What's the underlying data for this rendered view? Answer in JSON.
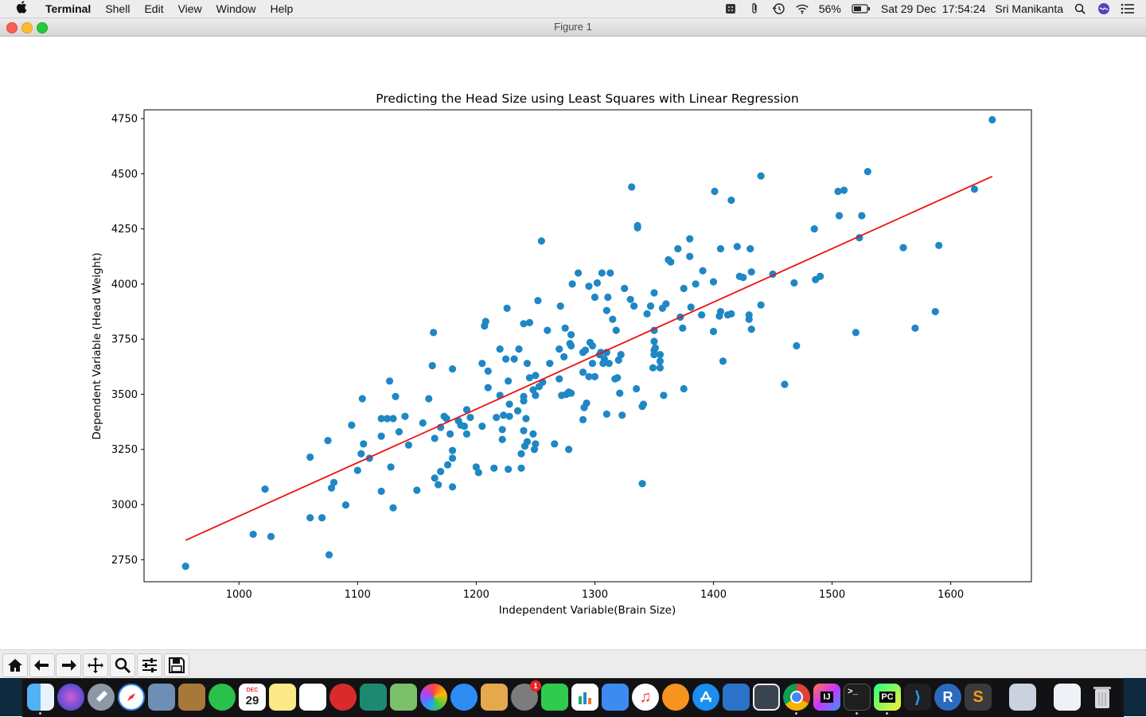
{
  "menubar": {
    "apple": "",
    "app_name": "Terminal",
    "items": [
      "Shell",
      "Edit",
      "View",
      "Window",
      "Help"
    ],
    "battery": "56%",
    "datetime": "Sat 29 Dec  17:54:24",
    "user": "Sri Manikanta",
    "status_icons": [
      "grid-icon",
      "paperclip-icon",
      "time-machine-icon",
      "wifi-icon",
      "battery-icon",
      "search-icon",
      "siri-icon",
      "list-icon"
    ]
  },
  "window": {
    "title": "Figure 1"
  },
  "toolbar": {
    "buttons": [
      "home-icon",
      "back-arrow-icon",
      "forward-arrow-icon",
      "pan-icon",
      "zoom-icon",
      "configure-subplots-icon",
      "save-icon"
    ]
  },
  "dock": {
    "apps": [
      "Finder",
      "Siri",
      "Launchpad",
      "Safari",
      "Preview",
      "Notefile",
      "Evernote",
      "Calendar",
      "Notes",
      "Reminders",
      "Clipper",
      "Shield",
      "Maps",
      "Photos",
      "Messages",
      "Texts",
      "System Preferences",
      "FaceTime",
      "Numbers",
      "Keynote",
      "Music",
      "Books",
      "App Store",
      "Xcode",
      "Remote",
      "Chrome",
      "IntelliJ",
      "Terminal",
      "PyCharm",
      "VS Code",
      "R",
      "Sublime Text",
      "Preview2",
      "Downloads",
      "Trash"
    ],
    "calendar_day": "29",
    "calendar_month": "DEC",
    "sysprefs_badge": "1"
  },
  "chart_data": {
    "type": "scatter",
    "title": "Predicting the Head Size using Least Squares with Linear Regression",
    "xlabel": "Independent Variable(Brain Size)",
    "ylabel": "Dependent Variable (Head Weight)",
    "xlim": [
      920,
      1668
    ],
    "ylim": [
      2650,
      4790
    ],
    "xticks": [
      1000,
      1100,
      1200,
      1300,
      1400,
      1500,
      1600
    ],
    "yticks": [
      2750,
      3000,
      3250,
      3500,
      3750,
      4000,
      4250,
      4500,
      4750
    ],
    "grid": false,
    "scatter_color": "#1f87c4",
    "line_color": "#ee1111",
    "regression_line": {
      "x": [
        955,
        1635
      ],
      "y": [
        2838,
        4488
      ]
    },
    "points": [
      [
        955,
        2720
      ],
      [
        1012,
        2865
      ],
      [
        1022,
        3070
      ],
      [
        1027,
        2855
      ],
      [
        1060,
        2940
      ],
      [
        1060,
        3215
      ],
      [
        1070,
        2940
      ],
      [
        1075,
        3290
      ],
      [
        1076,
        2772
      ],
      [
        1078,
        3075
      ],
      [
        1080,
        3100
      ],
      [
        1090,
        2998
      ],
      [
        1095,
        3360
      ],
      [
        1100,
        3155
      ],
      [
        1103,
        3230
      ],
      [
        1104,
        3480
      ],
      [
        1105,
        3275
      ],
      [
        1110,
        3210
      ],
      [
        1120,
        3390
      ],
      [
        1120,
        3310
      ],
      [
        1120,
        3060
      ],
      [
        1125,
        3390
      ],
      [
        1127,
        3560
      ],
      [
        1128,
        3170
      ],
      [
        1130,
        3390
      ],
      [
        1130,
        2985
      ],
      [
        1132,
        3490
      ],
      [
        1135,
        3330
      ],
      [
        1140,
        3400
      ],
      [
        1143,
        3270
      ],
      [
        1150,
        3065
      ],
      [
        1155,
        3370
      ],
      [
        1160,
        3480
      ],
      [
        1163,
        3630
      ],
      [
        1164,
        3780
      ],
      [
        1165,
        3300
      ],
      [
        1165,
        3120
      ],
      [
        1168,
        3090
      ],
      [
        1170,
        3350
      ],
      [
        1170,
        3150
      ],
      [
        1173,
        3400
      ],
      [
        1175,
        3390
      ],
      [
        1176,
        3180
      ],
      [
        1178,
        3320
      ],
      [
        1180,
        3210
      ],
      [
        1180,
        3245
      ],
      [
        1180,
        3615
      ],
      [
        1180,
        3080
      ],
      [
        1185,
        3380
      ],
      [
        1187,
        3360
      ],
      [
        1190,
        3355
      ],
      [
        1192,
        3430
      ],
      [
        1192,
        3320
      ],
      [
        1195,
        3395
      ],
      [
        1200,
        3170
      ],
      [
        1202,
        3145
      ],
      [
        1205,
        3355
      ],
      [
        1205,
        3640
      ],
      [
        1207,
        3810
      ],
      [
        1208,
        3830
      ],
      [
        1210,
        3605
      ],
      [
        1210,
        3530
      ],
      [
        1215,
        3165
      ],
      [
        1217,
        3395
      ],
      [
        1220,
        3495
      ],
      [
        1220,
        3705
      ],
      [
        1222,
        3295
      ],
      [
        1222,
        3340
      ],
      [
        1223,
        3405
      ],
      [
        1225,
        3660
      ],
      [
        1226,
        3890
      ],
      [
        1227,
        3560
      ],
      [
        1227,
        3160
      ],
      [
        1228,
        3455
      ],
      [
        1228,
        3400
      ],
      [
        1232,
        3660
      ],
      [
        1235,
        3425
      ],
      [
        1236,
        3705
      ],
      [
        1238,
        3230
      ],
      [
        1238,
        3165
      ],
      [
        1240,
        3490
      ],
      [
        1240,
        3470
      ],
      [
        1240,
        3335
      ],
      [
        1240,
        3820
      ],
      [
        1241,
        3265
      ],
      [
        1242,
        3390
      ],
      [
        1243,
        3640
      ],
      [
        1243,
        3285
      ],
      [
        1245,
        3825
      ],
      [
        1245,
        3575
      ],
      [
        1248,
        3520
      ],
      [
        1248,
        3320
      ],
      [
        1249,
        3250
      ],
      [
        1250,
        3585
      ],
      [
        1250,
        3495
      ],
      [
        1250,
        3275
      ],
      [
        1252,
        3925
      ],
      [
        1253,
        3535
      ],
      [
        1255,
        4195
      ],
      [
        1256,
        3555
      ],
      [
        1260,
        3790
      ],
      [
        1262,
        3640
      ],
      [
        1266,
        3275
      ],
      [
        1270,
        3570
      ],
      [
        1270,
        3705
      ],
      [
        1271,
        3900
      ],
      [
        1272,
        3495
      ],
      [
        1274,
        3670
      ],
      [
        1275,
        3800
      ],
      [
        1276,
        3500
      ],
      [
        1278,
        3250
      ],
      [
        1278,
        3510
      ],
      [
        1279,
        3730
      ],
      [
        1280,
        3505
      ],
      [
        1280,
        3720
      ],
      [
        1280,
        3770
      ],
      [
        1281,
        4000
      ],
      [
        1286,
        4050
      ],
      [
        1290,
        3385
      ],
      [
        1290,
        3600
      ],
      [
        1290,
        3690
      ],
      [
        1291,
        3440
      ],
      [
        1292,
        3700
      ],
      [
        1293,
        3460
      ],
      [
        1295,
        3580
      ],
      [
        1295,
        3990
      ],
      [
        1296,
        3735
      ],
      [
        1298,
        3720
      ],
      [
        1298,
        3640
      ],
      [
        1300,
        3580
      ],
      [
        1300,
        3940
      ],
      [
        1302,
        4005
      ],
      [
        1304,
        3680
      ],
      [
        1305,
        3690
      ],
      [
        1306,
        4050
      ],
      [
        1307,
        3640
      ],
      [
        1308,
        3660
      ],
      [
        1310,
        3690
      ],
      [
        1310,
        3410
      ],
      [
        1310,
        3880
      ],
      [
        1311,
        3940
      ],
      [
        1312,
        3640
      ],
      [
        1313,
        4050
      ],
      [
        1315,
        3840
      ],
      [
        1317,
        3570
      ],
      [
        1318,
        3790
      ],
      [
        1319,
        3575
      ],
      [
        1320,
        3655
      ],
      [
        1321,
        3505
      ],
      [
        1322,
        3680
      ],
      [
        1323,
        3405
      ],
      [
        1325,
        3980
      ],
      [
        1330,
        3930
      ],
      [
        1331,
        4440
      ],
      [
        1333,
        3900
      ],
      [
        1335,
        3525
      ],
      [
        1336,
        4265
      ],
      [
        1336,
        4255
      ],
      [
        1340,
        3445
      ],
      [
        1340,
        3095
      ],
      [
        1341,
        3455
      ],
      [
        1344,
        3865
      ],
      [
        1347,
        3900
      ],
      [
        1349,
        3620
      ],
      [
        1350,
        3960
      ],
      [
        1350,
        3790
      ],
      [
        1350,
        3740
      ],
      [
        1350,
        3700
      ],
      [
        1350,
        3680
      ],
      [
        1351,
        3710
      ],
      [
        1355,
        3620
      ],
      [
        1355,
        3650
      ],
      [
        1355,
        3680
      ],
      [
        1357,
        3890
      ],
      [
        1358,
        3495
      ],
      [
        1360,
        3910
      ],
      [
        1362,
        4110
      ],
      [
        1364,
        4100
      ],
      [
        1370,
        4160
      ],
      [
        1372,
        3850
      ],
      [
        1374,
        3800
      ],
      [
        1375,
        3525
      ],
      [
        1375,
        3980
      ],
      [
        1380,
        4125
      ],
      [
        1380,
        4205
      ],
      [
        1381,
        3895
      ],
      [
        1385,
        4000
      ],
      [
        1390,
        3860
      ],
      [
        1391,
        4060
      ],
      [
        1400,
        3785
      ],
      [
        1400,
        4010
      ],
      [
        1401,
        4420
      ],
      [
        1405,
        3855
      ],
      [
        1406,
        4160
      ],
      [
        1406,
        3875
      ],
      [
        1408,
        3650
      ],
      [
        1412,
        3860
      ],
      [
        1415,
        3865
      ],
      [
        1415,
        4380
      ],
      [
        1420,
        4170
      ],
      [
        1422,
        4035
      ],
      [
        1425,
        4030
      ],
      [
        1430,
        3860
      ],
      [
        1430,
        3840
      ],
      [
        1431,
        4160
      ],
      [
        1432,
        4055
      ],
      [
        1432,
        3795
      ],
      [
        1440,
        3905
      ],
      [
        1440,
        4490
      ],
      [
        1450,
        4045
      ],
      [
        1460,
        3545
      ],
      [
        1468,
        4005
      ],
      [
        1470,
        3720
      ],
      [
        1485,
        4250
      ],
      [
        1486,
        4020
      ],
      [
        1490,
        4035
      ],
      [
        1505,
        4420
      ],
      [
        1506,
        4310
      ],
      [
        1510,
        4425
      ],
      [
        1520,
        3780
      ],
      [
        1523,
        4210
      ],
      [
        1525,
        4310
      ],
      [
        1530,
        4510
      ],
      [
        1560,
        4165
      ],
      [
        1570,
        3800
      ],
      [
        1587,
        3875
      ],
      [
        1590,
        4175
      ],
      [
        1620,
        4430
      ],
      [
        1635,
        4745
      ]
    ]
  }
}
